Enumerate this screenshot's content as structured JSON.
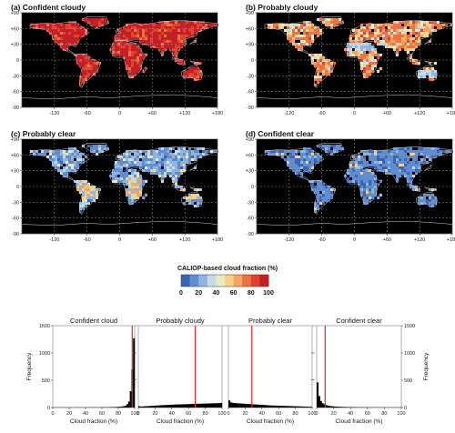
{
  "maps": {
    "panels": [
      {
        "title": "(a) Confident cloudy",
        "palette": "cloudy_high"
      },
      {
        "title": "(b) Probably cloudy",
        "palette": "cloudy_mid"
      },
      {
        "title": "(c) Probably clear",
        "palette": "clear_mid"
      },
      {
        "title": "(d)  Confident clear",
        "palette": "clear_low"
      }
    ],
    "lat_ticks": [
      "+90",
      "+60",
      "+30",
      "0",
      "-30",
      "-60",
      "-90"
    ],
    "lon_ticks": [
      "-120",
      "-60",
      "0",
      "+60",
      "+120",
      "+180"
    ]
  },
  "colorbar": {
    "title": "CALIOP-based cloud fraction (%)",
    "ticks": [
      "0",
      "20",
      "40",
      "60",
      "80",
      "100"
    ],
    "colors": [
      "#3b64b4",
      "#5f8ed0",
      "#8db5de",
      "#c4dbe9",
      "#ecebc0",
      "#f7cf86",
      "#f6a45e",
      "#ec7343",
      "#dc4331",
      "#c21f27"
    ]
  },
  "chart_data": [
    {
      "type": "bar",
      "title": "Confident cloud",
      "xlabel": "Cloud fraction (%)",
      "ylabel": "Frequency",
      "xlim": [
        0,
        100
      ],
      "ylim": [
        0,
        1500
      ],
      "red_line_x": 97,
      "bins": [
        0,
        2,
        4,
        6,
        8,
        10,
        12,
        14,
        16,
        18,
        20,
        22,
        24,
        26,
        28,
        30,
        32,
        34,
        36,
        38,
        40,
        42,
        44,
        46,
        48,
        50,
        52,
        54,
        56,
        58,
        60,
        62,
        64,
        66,
        68,
        70,
        72,
        74,
        76,
        78,
        80,
        82,
        84,
        86,
        88,
        90,
        92,
        94,
        96,
        98
      ],
      "values": [
        3,
        3,
        3,
        3,
        3,
        3,
        3,
        3,
        3,
        3,
        3,
        3,
        3,
        3,
        3,
        3,
        3,
        3,
        3,
        3,
        4,
        4,
        4,
        4,
        4,
        4,
        5,
        5,
        5,
        5,
        6,
        6,
        6,
        7,
        7,
        8,
        9,
        10,
        11,
        12,
        14,
        16,
        20,
        25,
        35,
        60,
        110,
        300,
        700,
        1270
      ]
    },
    {
      "type": "bar",
      "title": "Probably cloudy",
      "xlabel": "Cloud fraction (%)",
      "ylabel": "",
      "xlim": [
        0,
        100
      ],
      "ylim": [
        0,
        1500
      ],
      "red_line_x": 68,
      "bins": [
        0,
        2,
        4,
        6,
        8,
        10,
        12,
        14,
        16,
        18,
        20,
        22,
        24,
        26,
        28,
        30,
        32,
        34,
        36,
        38,
        40,
        42,
        44,
        46,
        48,
        50,
        52,
        54,
        56,
        58,
        60,
        62,
        64,
        66,
        68,
        70,
        72,
        74,
        76,
        78,
        80,
        82,
        84,
        86,
        88,
        90,
        92,
        94,
        96,
        98
      ],
      "values": [
        25,
        18,
        20,
        22,
        24,
        26,
        28,
        30,
        32,
        35,
        36,
        38,
        40,
        42,
        44,
        45,
        46,
        48,
        50,
        50,
        52,
        54,
        55,
        56,
        58,
        58,
        60,
        60,
        62,
        62,
        64,
        64,
        66,
        66,
        68,
        68,
        70,
        70,
        72,
        72,
        74,
        74,
        76,
        76,
        78,
        78,
        80,
        80,
        80,
        85
      ]
    },
    {
      "type": "bar",
      "title": "Probably clear",
      "xlabel": "Cloud fraction (%)",
      "ylabel": "",
      "xlim": [
        0,
        100
      ],
      "ylim": [
        0,
        1500
      ],
      "red_line_x": 28,
      "bins": [
        0,
        2,
        4,
        6,
        8,
        10,
        12,
        14,
        16,
        18,
        20,
        22,
        24,
        26,
        28,
        30,
        32,
        34,
        36,
        38,
        40,
        42,
        44,
        46,
        48,
        50,
        52,
        54,
        56,
        58,
        60,
        62,
        64,
        66,
        68,
        70,
        72,
        74,
        76,
        78,
        80,
        82,
        84,
        86,
        88,
        90,
        92,
        94,
        96,
        98
      ],
      "values": [
        130,
        95,
        85,
        82,
        80,
        78,
        76,
        74,
        72,
        70,
        68,
        66,
        64,
        62,
        60,
        58,
        56,
        54,
        52,
        50,
        48,
        46,
        44,
        42,
        40,
        38,
        37,
        36,
        35,
        34,
        33,
        32,
        31,
        30,
        29,
        28,
        27,
        26,
        25,
        24,
        23,
        22,
        21,
        20,
        19,
        18,
        17,
        16,
        15,
        14
      ]
    },
    {
      "type": "bar",
      "title": "Confident clear",
      "xlabel": "Cloud fraction (%)",
      "ylabel": "Frequency",
      "xlim": [
        0,
        100
      ],
      "ylim": [
        0,
        1500
      ],
      "red_line_x": 10,
      "bins": [
        0,
        2,
        4,
        6,
        8,
        10,
        12,
        14,
        16,
        18,
        20,
        22,
        24,
        26,
        28,
        30,
        32,
        34,
        36,
        38,
        40,
        42,
        44,
        46,
        48,
        50,
        52,
        54,
        56,
        58,
        60,
        62,
        64,
        66,
        68,
        70,
        72,
        74,
        76,
        78,
        80,
        82,
        84,
        86,
        88,
        90,
        92,
        94,
        96,
        98
      ],
      "values": [
        460,
        210,
        120,
        80,
        60,
        45,
        36,
        30,
        26,
        22,
        20,
        18,
        16,
        14,
        13,
        12,
        11,
        10,
        9,
        9,
        8,
        8,
        7,
        7,
        6,
        6,
        6,
        5,
        5,
        5,
        5,
        4,
        4,
        4,
        4,
        4,
        4,
        3,
        3,
        3,
        3,
        3,
        3,
        3,
        3,
        3,
        3,
        3,
        3,
        3
      ]
    }
  ],
  "hist": {
    "x_ticks": [
      "0",
      "20",
      "40",
      "60",
      "80",
      "100"
    ],
    "y_ticks": [
      "0",
      "500",
      "1000",
      "1500"
    ]
  }
}
